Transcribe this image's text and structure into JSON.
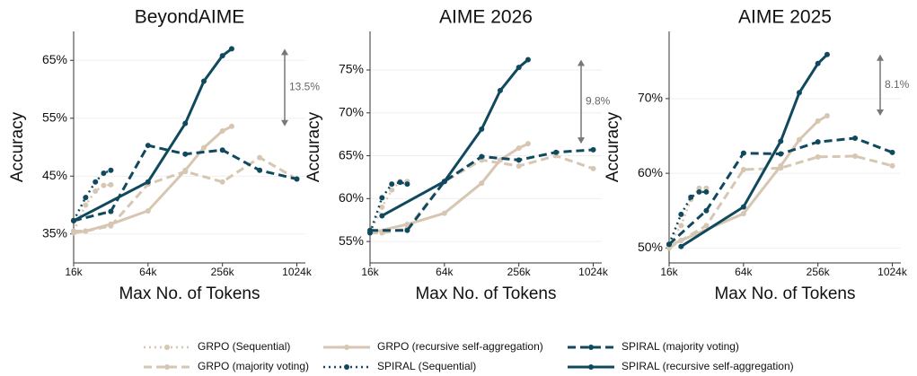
{
  "chart_data": [
    {
      "type": "line",
      "title": "BeyondAIME",
      "xlabel": "Max No. of Tokens",
      "ylabel": "Accuracy",
      "annotation": "13.5%",
      "xscale": "log2",
      "xlim": [
        16,
        1200
      ],
      "xticks": [
        {
          "value": 16,
          "label": "16k"
        },
        {
          "value": 64,
          "label": "64k"
        },
        {
          "value": 256,
          "label": "256k"
        },
        {
          "value": 1024,
          "label": "1024k"
        }
      ],
      "ylim": [
        30,
        70
      ],
      "yticks": [
        {
          "value": 35,
          "label": "35%"
        },
        {
          "value": 45,
          "label": "45%"
        },
        {
          "value": 55,
          "label": "55%"
        },
        {
          "value": 65,
          "label": "65%"
        }
      ],
      "grid": true,
      "series": [
        {
          "name": "GRPO (Sequential)",
          "color": "#d6c6b2",
          "style": "dotted",
          "x": [
            16,
            20,
            24,
            28,
            32
          ],
          "values": [
            35.5,
            40,
            42.4,
            43.4,
            43.5
          ]
        },
        {
          "name": "GRPO (majority voting)",
          "color": "#d6c6b2",
          "style": "dashed",
          "x": [
            16,
            20,
            32,
            64,
            128,
            256,
            512,
            1024
          ],
          "values": [
            35.5,
            35.5,
            36.4,
            43.6,
            45.8,
            44,
            48.2,
            44.5
          ]
        },
        {
          "name": "GRPO (recursive self-aggregation)",
          "color": "#d6c6b2",
          "style": "solid",
          "x": [
            16,
            20,
            32,
            64,
            128,
            181,
            256,
            304
          ],
          "values": [
            35.2,
            35.5,
            36.7,
            39,
            46,
            49.9,
            52.8,
            53.6
          ]
        },
        {
          "name": "SPIRAL (Sequential)",
          "color": "#10495e",
          "style": "dotted",
          "x": [
            16,
            20,
            24,
            28,
            32
          ],
          "values": [
            37.3,
            41.3,
            44,
            45.5,
            46
          ]
        },
        {
          "name": "SPIRAL (majority voting)",
          "color": "#10495e",
          "style": "dashed",
          "x": [
            16,
            32,
            64,
            128,
            256,
            512,
            1024
          ],
          "values": [
            37.3,
            38.9,
            50.3,
            48.8,
            49.5,
            46,
            44.5
          ]
        },
        {
          "name": "SPIRAL (recursive self-aggregation)",
          "color": "#10495e",
          "style": "solid",
          "x": [
            16,
            64,
            128,
            181,
            256,
            304
          ],
          "values": [
            37.3,
            44,
            54.1,
            61.4,
            65.8,
            67
          ]
        }
      ]
    },
    {
      "type": "line",
      "title": "AIME 2026",
      "xlabel": "Max No. of Tokens",
      "ylabel": "Accuracy",
      "annotation": "9.8%",
      "xscale": "log2",
      "xlim": [
        16,
        1200
      ],
      "xticks": [
        {
          "value": 16,
          "label": "16k"
        },
        {
          "value": 64,
          "label": "64k"
        },
        {
          "value": 256,
          "label": "256k"
        },
        {
          "value": 1024,
          "label": "1024k"
        }
      ],
      "ylim": [
        52.5,
        79.5
      ],
      "yticks": [
        {
          "value": 55,
          "label": "55%"
        },
        {
          "value": 60,
          "label": "60%"
        },
        {
          "value": 65,
          "label": "65%"
        },
        {
          "value": 70,
          "label": "70%"
        },
        {
          "value": 75,
          "label": "75%"
        }
      ],
      "grid": true,
      "series": [
        {
          "name": "GRPO (Sequential)",
          "color": "#d6c6b2",
          "style": "dotted",
          "x": [
            16,
            20,
            24,
            28,
            32
          ],
          "values": [
            56,
            59,
            61,
            62,
            62
          ]
        },
        {
          "name": "GRPO (majority voting)",
          "color": "#d6c6b2",
          "style": "dashed",
          "x": [
            16,
            20,
            32,
            64,
            128,
            256,
            512,
            1024
          ],
          "values": [
            56,
            56,
            56.5,
            62,
            64.5,
            63.8,
            65,
            63.5
          ]
        },
        {
          "name": "GRPO (recursive self-aggregation)",
          "color": "#d6c6b2",
          "style": "solid",
          "x": [
            16,
            32,
            64,
            128,
            181,
            256,
            304
          ],
          "values": [
            56,
            57,
            58.3,
            61.8,
            64.5,
            65.9,
            66.4
          ]
        },
        {
          "name": "SPIRAL (Sequential)",
          "color": "#10495e",
          "style": "dotted",
          "x": [
            16,
            20,
            24,
            28,
            32
          ],
          "values": [
            56,
            60.1,
            61.7,
            61.9,
            61.7
          ]
        },
        {
          "name": "SPIRAL (majority voting)",
          "color": "#10495e",
          "style": "dashed",
          "x": [
            16,
            32,
            64,
            128,
            256,
            512,
            1024
          ],
          "values": [
            56.3,
            56.3,
            62,
            64.9,
            64.5,
            65.4,
            65.7
          ]
        },
        {
          "name": "SPIRAL (recursive self-aggregation)",
          "color": "#10495e",
          "style": "solid",
          "x": [
            20,
            64,
            128,
            181,
            256,
            304
          ],
          "values": [
            58,
            62,
            68.1,
            72.6,
            75.3,
            76.2
          ]
        }
      ]
    },
    {
      "type": "line",
      "title": "AIME 2025",
      "xlabel": "Max No. of Tokens",
      "ylabel": "Accuracy",
      "annotation": "8.1%",
      "xscale": "log2",
      "xlim": [
        16,
        1200
      ],
      "xticks": [
        {
          "value": 16,
          "label": "16k"
        },
        {
          "value": 64,
          "label": "64k"
        },
        {
          "value": 256,
          "label": "256k"
        },
        {
          "value": 1024,
          "label": "1024k"
        }
      ],
      "ylim": [
        48,
        79
      ],
      "yticks": [
        {
          "value": 50,
          "label": "50%"
        },
        {
          "value": 60,
          "label": "60%"
        },
        {
          "value": 70,
          "label": "70%"
        }
      ],
      "grid": true,
      "series": [
        {
          "name": "GRPO (Sequential)",
          "color": "#d6c6b2",
          "style": "dotted",
          "x": [
            16,
            20,
            24,
            28,
            32
          ],
          "values": [
            50.5,
            53,
            56.5,
            58,
            58
          ]
        },
        {
          "name": "GRPO (majority voting)",
          "color": "#d6c6b2",
          "style": "dashed",
          "x": [
            16,
            20,
            32,
            64,
            128,
            256,
            512,
            1024
          ],
          "values": [
            50,
            51,
            53,
            60.5,
            60.7,
            62.2,
            62.3,
            61
          ]
        },
        {
          "name": "GRPO (recursive self-aggregation)",
          "color": "#d6c6b2",
          "style": "solid",
          "x": [
            16,
            20,
            64,
            128,
            181,
            256,
            304
          ],
          "values": [
            50.3,
            51,
            54.6,
            61,
            64.5,
            67,
            67.7
          ]
        },
        {
          "name": "SPIRAL (Sequential)",
          "color": "#10495e",
          "style": "dotted",
          "x": [
            16,
            20,
            24,
            28,
            32
          ],
          "values": [
            50.5,
            54.5,
            56.8,
            57.5,
            57.5
          ]
        },
        {
          "name": "SPIRAL (majority voting)",
          "color": "#10495e",
          "style": "dashed",
          "x": [
            16,
            32,
            64,
            128,
            256,
            512,
            1024
          ],
          "values": [
            50.5,
            55,
            62.7,
            62.6,
            64.2,
            64.7,
            62.8
          ]
        },
        {
          "name": "SPIRAL (recursive self-aggregation)",
          "color": "#10495e",
          "style": "solid",
          "x": [
            20,
            64,
            128,
            181,
            256,
            304
          ],
          "values": [
            50.2,
            55.5,
            64.3,
            70.8,
            74.7,
            75.9
          ]
        }
      ]
    }
  ]
}
